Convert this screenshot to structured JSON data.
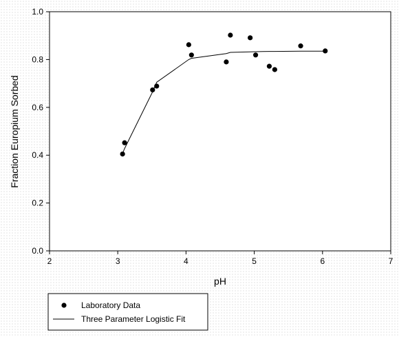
{
  "chart_data": {
    "type": "scatter",
    "xlabel": "pH",
    "ylabel": "Fraction Europium Sorbed",
    "xlim": [
      2,
      7
    ],
    "ylim": [
      0.0,
      1.0
    ],
    "xticks": [
      "2",
      "3",
      "4",
      "5",
      "6",
      "7"
    ],
    "yticks": [
      "0.0",
      "0.2",
      "0.4",
      "0.6",
      "0.8",
      "1.0"
    ],
    "grid": false,
    "legend_position": "bottom-left",
    "series": [
      {
        "name": "Laboratory Data",
        "kind": "scatter",
        "color": "#000000",
        "x": [
          3.07,
          3.1,
          3.51,
          3.57,
          4.04,
          4.08,
          4.59,
          4.65,
          4.94,
          5.02,
          5.22,
          5.3,
          5.68,
          6.04
        ],
        "y": [
          0.405,
          0.452,
          0.673,
          0.689,
          0.862,
          0.819,
          0.79,
          0.902,
          0.891,
          0.819,
          0.772,
          0.758,
          0.857,
          0.836
        ]
      },
      {
        "name": "Three Parameter Logistic Fit",
        "kind": "line",
        "color": "#000000",
        "x": [
          3.07,
          3.1,
          3.51,
          3.57,
          4.04,
          4.08,
          4.59,
          4.65,
          4.94,
          5.02,
          5.22,
          5.3,
          5.68,
          6.04
        ],
        "y": [
          0.408,
          0.428,
          0.665,
          0.705,
          0.8,
          0.805,
          0.825,
          0.83,
          0.832,
          0.833,
          0.834,
          0.834,
          0.835,
          0.835
        ]
      }
    ]
  }
}
